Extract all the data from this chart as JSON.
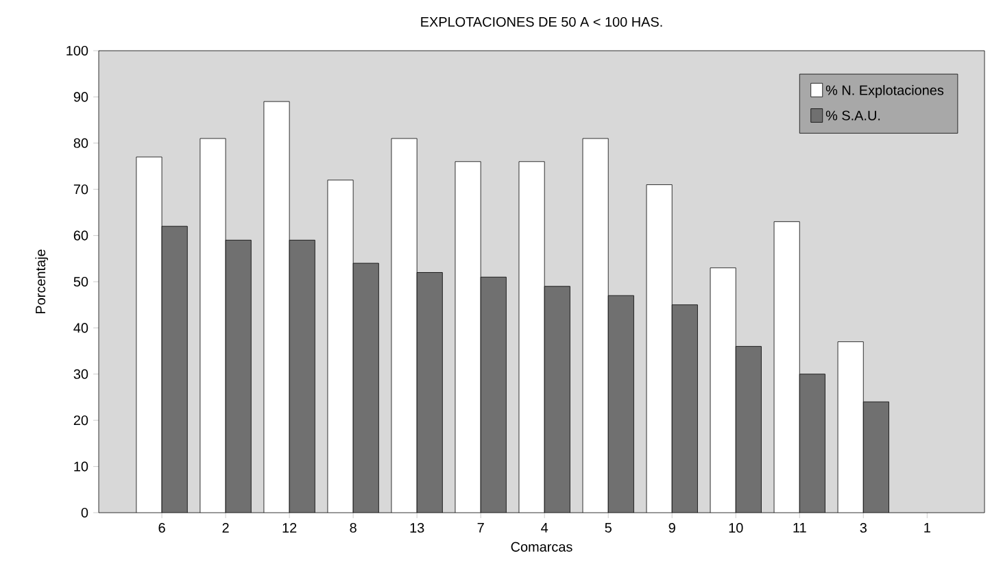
{
  "chart_data": {
    "type": "bar",
    "title": "EXPLOTACIONES DE 50 A < 100 HAS.",
    "xlabel": "Comarcas",
    "ylabel": "Porcentaje",
    "categories": [
      "6",
      "2",
      "12",
      "8",
      "13",
      "7",
      "4",
      "5",
      "9",
      "10",
      "11",
      "3",
      "1"
    ],
    "series": [
      {
        "name": "% N. Explotaciones",
        "color": "#ffffff",
        "values": [
          77,
          81,
          89,
          72,
          81,
          76,
          76,
          81,
          71,
          53,
          63,
          37,
          null
        ]
      },
      {
        "name": "% S.A.U.",
        "color": "#707070",
        "values": [
          62,
          59,
          59,
          54,
          52,
          51,
          49,
          47,
          45,
          36,
          30,
          24,
          null
        ]
      }
    ],
    "ylim": [
      0,
      100
    ],
    "yticks": [
      0,
      10,
      20,
      30,
      40,
      50,
      60,
      70,
      80,
      90,
      100
    ],
    "legend": "top right"
  }
}
